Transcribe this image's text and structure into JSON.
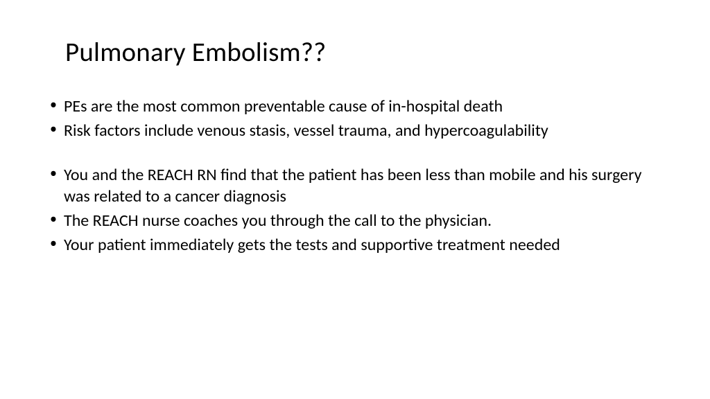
{
  "slide": {
    "title": "Pulmonary Embolism??",
    "bullets_group1": [
      "PEs are the most common preventable cause of in-hospital death",
      "Risk factors include venous stasis, vessel trauma, and hypercoagulability"
    ],
    "bullets_group2": [
      "You and the REACH RN find that the patient has been less than mobile and his surgery was related to a cancer diagnosis",
      "The REACH nurse coaches you through the call to the physician.",
      "Your patient immediately gets the tests and supportive treatment needed"
    ],
    "background_color": "#ffffff",
    "text_color": "#000000",
    "title_fontsize": 39,
    "body_fontsize": 24,
    "font_family": "Segoe UI Light"
  }
}
